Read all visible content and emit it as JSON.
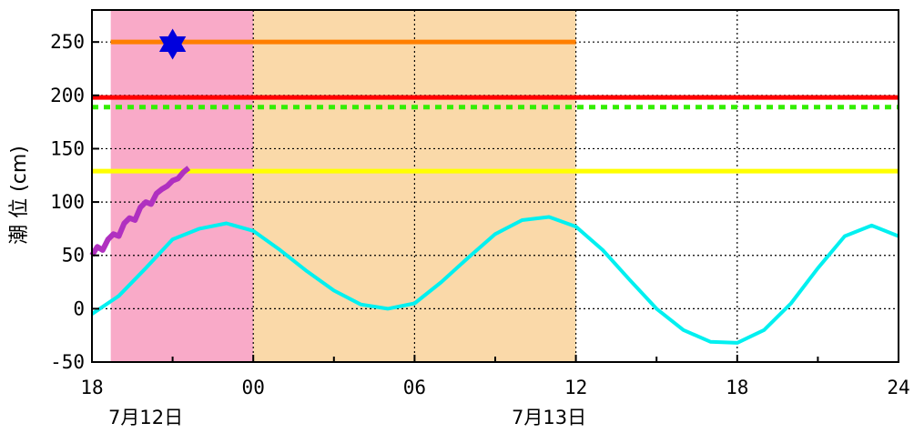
{
  "chart_data": {
    "type": "line",
    "title": "",
    "xlabel": "",
    "ylabel": "潮 位 (cm)",
    "x_unit": "hour",
    "xlim": [
      18,
      48
    ],
    "ylim": [
      -50,
      280
    ],
    "grid": true,
    "x_ticks": [
      {
        "value": 18,
        "label": "18"
      },
      {
        "value": 24,
        "label": "00"
      },
      {
        "value": 30,
        "label": "06"
      },
      {
        "value": 36,
        "label": "12"
      },
      {
        "value": 42,
        "label": "18"
      },
      {
        "value": 48,
        "label": "24"
      }
    ],
    "y_ticks": [
      250,
      200,
      150,
      100,
      50,
      0,
      -50
    ],
    "date_labels": [
      {
        "x": 20,
        "label": "7月12日"
      },
      {
        "x": 35,
        "label": "7月13日"
      }
    ],
    "shaded_regions": [
      {
        "x_start": 18.7,
        "x_end": 24,
        "color": "#f9aac8"
      },
      {
        "x_start": 24,
        "x_end": 36,
        "color": "#fad9a9"
      }
    ],
    "reference_lines": [
      {
        "y": 250,
        "color": "#ff7f00",
        "style": "solid",
        "x_start": 18.7,
        "x_end": 36
      },
      {
        "y": 198,
        "color": "#ff0000",
        "style": "solid",
        "x_start": 18,
        "x_end": 48
      },
      {
        "y": 189,
        "color": "#33ee00",
        "style": "dotted",
        "x_start": 18,
        "x_end": 48
      },
      {
        "y": 129,
        "color": "#ffff00",
        "style": "solid",
        "x_start": 18,
        "x_end": 48
      }
    ],
    "marker": {
      "x": 21.0,
      "y": 248,
      "symbol": "star",
      "color": "#0000dd"
    },
    "series": [
      {
        "color": "#00f0f0",
        "x": [
          18,
          19,
          20,
          21,
          22,
          23,
          24,
          25,
          26,
          27,
          28,
          29,
          30,
          31,
          32,
          33,
          34,
          35,
          36,
          37,
          38,
          39,
          40,
          41,
          42,
          43,
          44,
          45,
          46,
          47,
          48
        ],
        "values": [
          -5,
          12,
          38,
          65,
          75,
          80,
          73,
          55,
          35,
          17,
          4,
          0,
          5,
          25,
          48,
          70,
          83,
          86,
          77,
          55,
          27,
          0,
          -20,
          -31,
          -32,
          -20,
          5,
          38,
          68,
          78,
          68
        ]
      },
      {
        "color": "#b030c0",
        "x": [
          18,
          18.2,
          18.4,
          18.6,
          18.8,
          19.0,
          19.2,
          19.4,
          19.6,
          19.8,
          20.0,
          20.2,
          20.4,
          20.6,
          20.8,
          21.0,
          21.2,
          21.4,
          21.6
        ],
        "values": [
          50,
          58,
          55,
          65,
          70,
          68,
          80,
          85,
          83,
          95,
          100,
          98,
          108,
          112,
          115,
          120,
          122,
          128,
          132
        ]
      }
    ]
  }
}
